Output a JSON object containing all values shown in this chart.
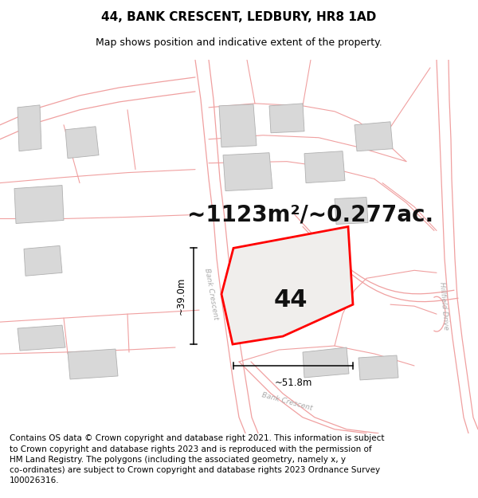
{
  "title": "44, BANK CRESCENT, LEDBURY, HR8 1AD",
  "subtitle": "Map shows position and indicative extent of the property.",
  "area_text": "~1123m²/~0.277ac.",
  "property_number": "44",
  "dim_width": "~51.8m",
  "dim_height": "~39.0m",
  "copyright_text": "Contains OS data © Crown copyright and database right 2021. This information is subject to Crown copyright and database rights 2023 and is reproduced with the permission of HM Land Registry. The polygons (including the associated geometry, namely x, y co-ordinates) are subject to Crown copyright and database rights 2023 Ordnance Survey 100026316.",
  "bg_color": "#ffffff",
  "line_color": "#f0a0a0",
  "building_fill": "#d8d8d8",
  "building_edge": "#b0b0b0",
  "property_fill": "#ffffff",
  "property_edge": "#ff0000",
  "title_fontsize": 11,
  "subtitle_fontsize": 9,
  "area_fontsize": 20,
  "number_fontsize": 22,
  "copyright_fontsize": 7.5,
  "road_label_color": "#aaaaaa",
  "road_label_fontsize": 6.5
}
